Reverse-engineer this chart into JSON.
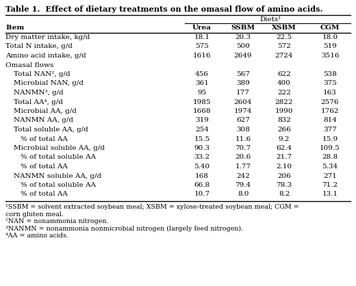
{
  "title": "Table 1.  Effect of dietary treatments on the omasal flow of amino acids.",
  "diets_label": "Diets¹",
  "col_headers": [
    "Item",
    "Urea",
    "SSBM",
    "XSBM",
    "CGM"
  ],
  "rows": [
    {
      "label": "Dry matter intake, kg/d",
      "indent": 0,
      "values": [
        "18.1",
        "20.3",
        "22.5",
        "18.0"
      ]
    },
    {
      "label": "Total N intake, g/d",
      "indent": 0,
      "values": [
        "575",
        "500",
        "572",
        "519"
      ]
    },
    {
      "label": "Amino acid intake, g/d",
      "indent": 0,
      "values": [
        "1616",
        "2649",
        "2724",
        "3516"
      ]
    },
    {
      "label": "Omasal flows",
      "indent": 0,
      "values": [
        "",
        "",
        "",
        ""
      ]
    },
    {
      "label": "Total NAN², g/d",
      "indent": 1,
      "values": [
        "456",
        "567",
        "622",
        "538"
      ]
    },
    {
      "label": "Microbial NAN, g/d",
      "indent": 1,
      "values": [
        "361",
        "389",
        "400",
        "375"
      ]
    },
    {
      "label": "NANMN³, g/d",
      "indent": 1,
      "values": [
        "95",
        "177",
        "222",
        "163"
      ]
    },
    {
      "label": "Total AA⁴, g/d",
      "indent": 1,
      "values": [
        "1985",
        "2604",
        "2822",
        "2576"
      ]
    },
    {
      "label": "Microbial AA, g/d",
      "indent": 1,
      "values": [
        "1668",
        "1974",
        "1990",
        "1762"
      ]
    },
    {
      "label": "NANMN AA, g/d",
      "indent": 1,
      "values": [
        "319",
        "627",
        "832",
        "814"
      ]
    },
    {
      "label": "Total soluble AA, g/d",
      "indent": 1,
      "values": [
        "254",
        "308",
        "266",
        "377"
      ]
    },
    {
      "label": "% of total AA",
      "indent": 2,
      "values": [
        "15.5",
        "11.6",
        "9.2",
        "15.9"
      ]
    },
    {
      "label": "Microbial soluble AA, g/d",
      "indent": 1,
      "values": [
        "90.3",
        "70.7",
        "62.4",
        "109.5"
      ]
    },
    {
      "label": "% of total soluble AA",
      "indent": 2,
      "values": [
        "33.2",
        "20.6",
        "21.7",
        "28.8"
      ]
    },
    {
      "label": "% of total AA",
      "indent": 2,
      "values": [
        "5.40",
        "1.77",
        "2.10",
        "5.34"
      ]
    },
    {
      "label": "NANMN soluble AA, g/d",
      "indent": 1,
      "values": [
        "168",
        "242",
        "206",
        "271"
      ]
    },
    {
      "label": "% of total soluble AA",
      "indent": 2,
      "values": [
        "66.8",
        "79.4",
        "78.3",
        "71.2"
      ]
    },
    {
      "label": "% of total AA",
      "indent": 2,
      "values": [
        "10.7",
        "8.0",
        "8.2",
        "13.1"
      ]
    }
  ],
  "footnotes": [
    "¹SSBM = solvent extracted soybean meal; XSBM = xylose-treated soybean meal; CGM =",
    "corn gluten meal.",
    "²NAN = nonammonia nitrogen.",
    "³NANMN = nonammonia nonmicrobial nitrogen (largely feed nitrogen).",
    "⁴AA = amino acids."
  ],
  "bg_color": "#ffffff",
  "text_color": "#000000",
  "border_color": "#000000",
  "font_size": 7.5,
  "title_font_size": 8.2,
  "footnote_font_size": 6.8
}
